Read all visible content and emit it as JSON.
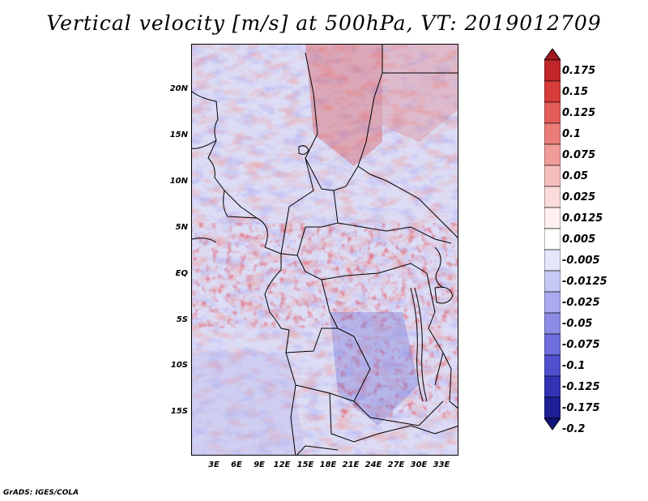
{
  "title": "Vertical velocity [m/s] at 500hPa, VT: 2019012709",
  "credit": "GrADS: IGES/COLA",
  "map": {
    "lat_labels": [
      "20N",
      "15N",
      "10N",
      "5N",
      "EQ",
      "5S",
      "10S",
      "15S"
    ],
    "lon_labels": [
      "3E",
      "6E",
      "9E",
      "12E",
      "15E",
      "18E",
      "21E",
      "24E",
      "27E",
      "30E",
      "33E"
    ]
  },
  "colorbar": {
    "levels": [
      "0.175",
      "0.15",
      "0.125",
      "0.1",
      "0.075",
      "0.05",
      "0.025",
      "0.0125",
      "0.005",
      "-0.005",
      "-0.0125",
      "-0.025",
      "-0.05",
      "-0.075",
      "-0.1",
      "-0.125",
      "-0.175",
      "-0.2"
    ],
    "colors": [
      "#a3171e",
      "#c0262a",
      "#d63c3a",
      "#e35c58",
      "#ea7d7a",
      "#f09d9a",
      "#f6bebc",
      "#fadcdb",
      "#fdf0ef",
      "#ffffff",
      "#e6e6fa",
      "#c8c8f5",
      "#aaaaf0",
      "#8c8ce6",
      "#6e6edc",
      "#5050cd",
      "#3232b4",
      "#1e1e96",
      "#14147d"
    ]
  }
}
